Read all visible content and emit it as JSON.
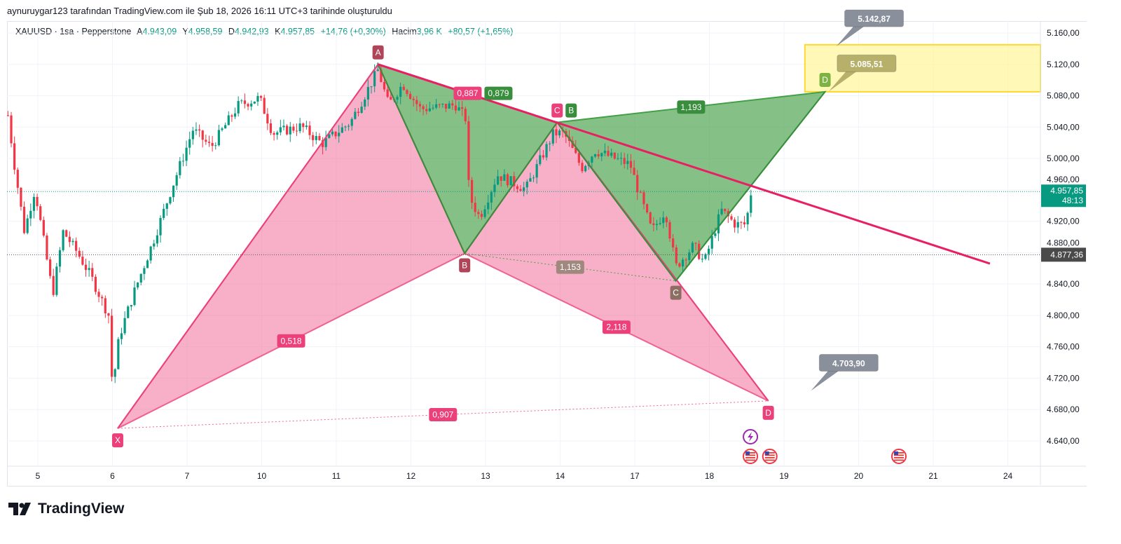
{
  "header": {
    "credit": "aynuruygar123 tarafından TradingView.com ile Şub 18, 2026 16:11 UTC+3 tarihinde oluşturuldu",
    "symbol": "XAUUSD · 1sa · Pepperstone",
    "open_label": "A",
    "open": "4.943,09",
    "high_label": "Y",
    "high": "4.958,59",
    "low_label": "D",
    "low": "4.942,93",
    "close_label": "K",
    "close": "4.957,85",
    "change": "+14,76 (+0,30%)",
    "volume_label": "Hacim",
    "volume": "3,96 K",
    "volume_change": "+80,57 (+1,65%)"
  },
  "brand": {
    "name": "TradingView"
  },
  "colors": {
    "up": "#089981",
    "down": "#f23645",
    "pink": "#f06292",
    "green": "#43a047",
    "trend": "#e91e63",
    "box": "#fff59d"
  },
  "chart_data": {
    "type": "candlestick",
    "symbol": "XAUUSD",
    "interval": "1h",
    "ylim": [
      4610,
      5180
    ],
    "y_ticks": [
      "5.160,00",
      "5.120,00",
      "5.080,00",
      "5.040,00",
      "5.000,00",
      "4.960,00",
      "4.920,00",
      "4.880,00",
      "4.840,00",
      "4.800,00",
      "4.760,00",
      "4.720,00",
      "4.680,00",
      "4.640,00"
    ],
    "y_tick_values": [
      5160,
      5120,
      5080,
      5040,
      5000,
      4960,
      4920,
      4880,
      4840,
      4800,
      4760,
      4720,
      4680,
      4640
    ],
    "x_ticks": [
      "5",
      "6",
      "7",
      "10",
      "11",
      "12",
      "13",
      "14",
      "17",
      "18",
      "19",
      "20",
      "21",
      "24"
    ],
    "price_path": [
      [
        -0.4,
        5055
      ],
      [
        -0.32,
        4996
      ],
      [
        -0.18,
        4907
      ],
      [
        -0.04,
        4961
      ],
      [
        0.2,
        4827
      ],
      [
        0.34,
        4907
      ],
      [
        0.53,
        4880
      ],
      [
        0.71,
        4850
      ],
      [
        0.95,
        4800
      ],
      [
        1.0,
        4706
      ],
      [
        1.09,
        4773
      ],
      [
        1.28,
        4827
      ],
      [
        1.56,
        4898
      ],
      [
        1.79,
        4961
      ],
      [
        2.08,
        5037
      ],
      [
        2.32,
        5014
      ],
      [
        2.69,
        5068
      ],
      [
        2.97,
        5077
      ],
      [
        3.15,
        5032
      ],
      [
        3.53,
        5041
      ],
      [
        3.81,
        5019
      ],
      [
        4.19,
        5046
      ],
      [
        4.56,
        5113
      ],
      [
        4.7,
        5068
      ],
      [
        4.89,
        5095
      ],
      [
        5.13,
        5063
      ],
      [
        5.6,
        5068
      ],
      [
        5.74,
        5050
      ],
      [
        5.78,
        4952
      ],
      [
        5.92,
        4925
      ],
      [
        6.16,
        4979
      ],
      [
        6.54,
        4961
      ],
      [
        6.91,
        5032
      ],
      [
        7.05,
        5032
      ],
      [
        7.29,
        4988
      ],
      [
        7.47,
        5010
      ],
      [
        7.94,
        4992
      ],
      [
        8.04,
        4961
      ],
      [
        8.23,
        4907
      ],
      [
        8.41,
        4934
      ],
      [
        8.55,
        4862
      ],
      [
        8.79,
        4889
      ],
      [
        8.93,
        4867
      ],
      [
        9.16,
        4934
      ],
      [
        9.35,
        4916
      ],
      [
        9.49,
        4916
      ],
      [
        9.56,
        4958
      ]
    ],
    "last_price": {
      "value": "4.957,85",
      "countdown": "48:13"
    },
    "ref_price": {
      "value": "4.877,36"
    },
    "last_price_value": 4957.85,
    "ref_price_value": 4877.36,
    "patterns": [
      {
        "name": "pink-xabcd",
        "color": "#f06292",
        "points": {
          "X": [
            1.07,
            4656
          ],
          "A": [
            4.56,
            5120
          ],
          "B": [
            5.72,
            4879
          ],
          "C": [
            6.96,
            5046
          ],
          "D": [
            9.79,
            4691
          ]
        },
        "ratios": [
          {
            "from": "X",
            "to": "B",
            "text": "0,518"
          },
          {
            "from": "A",
            "to": "C",
            "text": "0,887"
          },
          {
            "from": "B",
            "to": "D",
            "text": "2,118"
          },
          {
            "from": "X",
            "to": "D",
            "text": "0,907"
          }
        ]
      },
      {
        "name": "green-xabcd",
        "color": "#43a047",
        "points": {
          "X": [
            4.56,
            5120
          ],
          "A": [
            5.72,
            4879
          ],
          "B": [
            6.96,
            5046
          ],
          "C": [
            8.55,
            4844
          ],
          "D": [
            10.55,
            5085
          ]
        },
        "ratios": [
          {
            "from": "X",
            "to": "B",
            "text": "0,879"
          },
          {
            "from": "A",
            "to": "C",
            "text": "1,153"
          },
          {
            "from": "B",
            "to": "D",
            "text": "1,193"
          }
        ]
      }
    ],
    "point_labels": [
      "X",
      "A",
      "B",
      "C",
      "D"
    ],
    "trendline": [
      [
        4.56,
        5120
      ],
      [
        12.76,
        4866
      ]
    ],
    "target_zone": {
      "from_t": 10.28,
      "price_top": 5145,
      "price_bottom": 5085
    },
    "callouts": [
      {
        "text": "5.142,87",
        "t": 10.7,
        "price": 5142.87,
        "color": "#8a8f9c"
      },
      {
        "text": "5.085,51",
        "t": 10.6,
        "price": 5085.51,
        "color": "#b7b06b"
      },
      {
        "text": "4.703,90",
        "t": 10.36,
        "price": 4703.9,
        "color": "#8a8f9c"
      }
    ],
    "events": [
      {
        "icon": "lightning-icon",
        "t": 9.55
      },
      {
        "icon": "us-flag-icon",
        "t": 9.55
      },
      {
        "icon": "us-flag-icon",
        "t": 9.81
      },
      {
        "icon": "us-flag-icon",
        "t": 11.54
      }
    ]
  }
}
